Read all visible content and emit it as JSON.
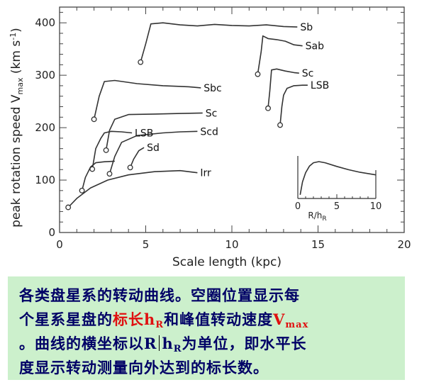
{
  "chart_data": {
    "type": "line",
    "xlabel": "Scale length (kpc)",
    "ylabel": "peak rotation speed V",
    "ylabel_sub": "max",
    "ylabel_unit": " (km s",
    "ylabel_unit_sup": "-1",
    "ylabel_unit_end": ")",
    "xlim": [
      0,
      20
    ],
    "ylim": [
      0,
      430
    ],
    "xticks": [
      "0",
      "5",
      "10",
      "15",
      "20"
    ],
    "yticks": [
      "0",
      "100",
      "200",
      "300",
      "400"
    ],
    "series": [
      {
        "name": "Sb",
        "marker": [
          4.7,
          325
        ],
        "points": [
          [
            4.7,
            325
          ],
          [
            5.0,
            360
          ],
          [
            5.3,
            398
          ],
          [
            6,
            400
          ],
          [
            7,
            396
          ],
          [
            8,
            394
          ],
          [
            9,
            397
          ],
          [
            10,
            395
          ],
          [
            11,
            394
          ],
          [
            12,
            396
          ],
          [
            13,
            393
          ],
          [
            13.8,
            392
          ]
        ]
      },
      {
        "name": "Sab",
        "marker": [
          11.5,
          302
        ],
        "points": [
          [
            11.5,
            302
          ],
          [
            11.7,
            345
          ],
          [
            11.8,
            375
          ],
          [
            12.1,
            370
          ],
          [
            12.6,
            368
          ],
          [
            13.1,
            365
          ],
          [
            13.6,
            358
          ],
          [
            14.1,
            356
          ]
        ]
      },
      {
        "name": "Sc",
        "marker": [
          12.1,
          237
        ],
        "points": [
          [
            12.1,
            237
          ],
          [
            12.2,
            270
          ],
          [
            12.3,
            310
          ],
          [
            12.6,
            312
          ],
          [
            13.1,
            308
          ],
          [
            13.6,
            305
          ],
          [
            13.9,
            304
          ]
        ]
      },
      {
        "name": "LSB",
        "marker": [
          12.8,
          205
        ],
        "points": [
          [
            12.8,
            205
          ],
          [
            12.9,
            240
          ],
          [
            13.0,
            262
          ],
          [
            13.2,
            275
          ],
          [
            13.6,
            280
          ],
          [
            14.1,
            281
          ],
          [
            14.4,
            281
          ]
        ]
      },
      {
        "name": "Sbc",
        "marker": [
          2.0,
          216
        ],
        "points": [
          [
            2.0,
            216
          ],
          [
            2.3,
            260
          ],
          [
            2.6,
            288
          ],
          [
            3.2,
            290
          ],
          [
            4.5,
            284
          ],
          [
            6,
            280
          ],
          [
            7.5,
            278
          ],
          [
            8.2,
            276
          ]
        ]
      },
      {
        "name": "Sc",
        "marker": [
          2.7,
          157
        ],
        "points": [
          [
            2.7,
            157
          ],
          [
            2.9,
            195
          ],
          [
            3.2,
            216
          ],
          [
            4,
            225
          ],
          [
            5.5,
            226
          ],
          [
            7,
            227
          ],
          [
            8.3,
            228
          ]
        ]
      },
      {
        "name": "LSB",
        "marker": [
          1.9,
          121
        ],
        "points": [
          [
            1.9,
            121
          ],
          [
            2.1,
            160
          ],
          [
            2.4,
            180
          ],
          [
            2.6,
            190
          ],
          [
            3.0,
            193
          ],
          [
            3.6,
            192
          ],
          [
            4.2,
            190
          ]
        ]
      },
      {
        "name": "Scd",
        "marker": [
          2.9,
          112
        ],
        "points": [
          [
            2.9,
            112
          ],
          [
            3.2,
            145
          ],
          [
            3.6,
            172
          ],
          [
            4.5,
            185
          ],
          [
            6,
            190
          ],
          [
            7,
            192
          ],
          [
            8.0,
            193
          ]
        ]
      },
      {
        "name": "Sd",
        "marker": [
          4.1,
          124
        ],
        "points": [
          [
            4.1,
            124
          ],
          [
            4.3,
            140
          ],
          [
            4.6,
            156
          ],
          [
            4.9,
            162
          ]
        ]
      },
      {
        "name": "",
        "marker": [
          1.3,
          80
        ],
        "points": [
          [
            1.3,
            80
          ],
          [
            1.5,
            105
          ],
          [
            1.8,
            125
          ],
          [
            2.1,
            133
          ],
          [
            2.6,
            135
          ],
          [
            3.2,
            136
          ]
        ]
      },
      {
        "name": "Irr",
        "marker": [
          0.5,
          48
        ],
        "points": [
          [
            0.5,
            48
          ],
          [
            1.0,
            65
          ],
          [
            1.8,
            85
          ],
          [
            2.8,
            100
          ],
          [
            4,
            110
          ],
          [
            5.5,
            116
          ],
          [
            7,
            118
          ],
          [
            8.0,
            114
          ]
        ]
      }
    ],
    "inset": {
      "xlabel": "R/h",
      "xlabel_sub": "R",
      "xticks": [
        "0",
        "5",
        "10"
      ],
      "xlim": [
        0,
        10
      ],
      "curve": [
        [
          0.3,
          0.1
        ],
        [
          0.6,
          0.45
        ],
        [
          1,
          0.7
        ],
        [
          1.5,
          0.88
        ],
        [
          2,
          0.97
        ],
        [
          2.7,
          1.0
        ],
        [
          3.5,
          0.97
        ],
        [
          5,
          0.87
        ],
        [
          6.5,
          0.78
        ],
        [
          8,
          0.71
        ],
        [
          10,
          0.64
        ]
      ]
    }
  },
  "caption": {
    "line1": "各类盘星系的转动曲线。空圈位置显示每",
    "line2_a": "个星系星盘的",
    "line2_red": "标长h",
    "line2_red_sub": "R",
    "line2_b": "和峰值转动速度",
    "line2_blue_big": "V",
    "line2_red2_sub": "max",
    "line3_a": "。曲线的横坐标以R",
    "line3_b": "h",
    "line3_b_sub": "R",
    "line3_c": "为单位，即水平长",
    "line4": "度显示转动测量向外达到的标长数。"
  },
  "colors": {
    "caption_bg": "#ccf0cc",
    "caption_text": "#000066",
    "caption_highlight": "#e01010"
  }
}
